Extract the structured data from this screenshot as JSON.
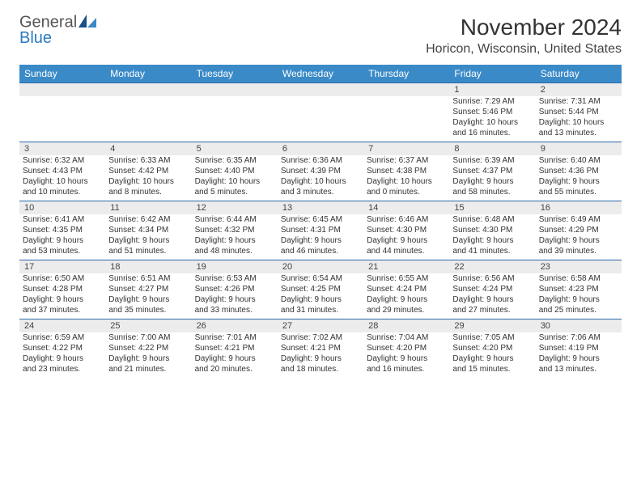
{
  "brand": {
    "general": "General",
    "blue": "Blue"
  },
  "title": "November 2024",
  "location": "Horicon, Wisconsin, United States",
  "colors": {
    "header_bg": "#3a8ac8",
    "header_text": "#ffffff",
    "daynum_bg": "#ececec",
    "border": "#2a6aa8",
    "brand_blue": "#2a7ac0",
    "text": "#333333"
  },
  "days": [
    "Sunday",
    "Monday",
    "Tuesday",
    "Wednesday",
    "Thursday",
    "Friday",
    "Saturday"
  ],
  "weeks": [
    {
      "nums": [
        "",
        "",
        "",
        "",
        "",
        "1",
        "2"
      ],
      "cells": [
        {},
        {},
        {},
        {},
        {},
        {
          "sunrise": "Sunrise: 7:29 AM",
          "sunset": "Sunset: 5:46 PM",
          "day1": "Daylight: 10 hours",
          "day2": "and 16 minutes."
        },
        {
          "sunrise": "Sunrise: 7:31 AM",
          "sunset": "Sunset: 5:44 PM",
          "day1": "Daylight: 10 hours",
          "day2": "and 13 minutes."
        }
      ]
    },
    {
      "nums": [
        "3",
        "4",
        "5",
        "6",
        "7",
        "8",
        "9"
      ],
      "cells": [
        {
          "sunrise": "Sunrise: 6:32 AM",
          "sunset": "Sunset: 4:43 PM",
          "day1": "Daylight: 10 hours",
          "day2": "and 10 minutes."
        },
        {
          "sunrise": "Sunrise: 6:33 AM",
          "sunset": "Sunset: 4:42 PM",
          "day1": "Daylight: 10 hours",
          "day2": "and 8 minutes."
        },
        {
          "sunrise": "Sunrise: 6:35 AM",
          "sunset": "Sunset: 4:40 PM",
          "day1": "Daylight: 10 hours",
          "day2": "and 5 minutes."
        },
        {
          "sunrise": "Sunrise: 6:36 AM",
          "sunset": "Sunset: 4:39 PM",
          "day1": "Daylight: 10 hours",
          "day2": "and 3 minutes."
        },
        {
          "sunrise": "Sunrise: 6:37 AM",
          "sunset": "Sunset: 4:38 PM",
          "day1": "Daylight: 10 hours",
          "day2": "and 0 minutes."
        },
        {
          "sunrise": "Sunrise: 6:39 AM",
          "sunset": "Sunset: 4:37 PM",
          "day1": "Daylight: 9 hours",
          "day2": "and 58 minutes."
        },
        {
          "sunrise": "Sunrise: 6:40 AM",
          "sunset": "Sunset: 4:36 PM",
          "day1": "Daylight: 9 hours",
          "day2": "and 55 minutes."
        }
      ]
    },
    {
      "nums": [
        "10",
        "11",
        "12",
        "13",
        "14",
        "15",
        "16"
      ],
      "cells": [
        {
          "sunrise": "Sunrise: 6:41 AM",
          "sunset": "Sunset: 4:35 PM",
          "day1": "Daylight: 9 hours",
          "day2": "and 53 minutes."
        },
        {
          "sunrise": "Sunrise: 6:42 AM",
          "sunset": "Sunset: 4:34 PM",
          "day1": "Daylight: 9 hours",
          "day2": "and 51 minutes."
        },
        {
          "sunrise": "Sunrise: 6:44 AM",
          "sunset": "Sunset: 4:32 PM",
          "day1": "Daylight: 9 hours",
          "day2": "and 48 minutes."
        },
        {
          "sunrise": "Sunrise: 6:45 AM",
          "sunset": "Sunset: 4:31 PM",
          "day1": "Daylight: 9 hours",
          "day2": "and 46 minutes."
        },
        {
          "sunrise": "Sunrise: 6:46 AM",
          "sunset": "Sunset: 4:30 PM",
          "day1": "Daylight: 9 hours",
          "day2": "and 44 minutes."
        },
        {
          "sunrise": "Sunrise: 6:48 AM",
          "sunset": "Sunset: 4:30 PM",
          "day1": "Daylight: 9 hours",
          "day2": "and 41 minutes."
        },
        {
          "sunrise": "Sunrise: 6:49 AM",
          "sunset": "Sunset: 4:29 PM",
          "day1": "Daylight: 9 hours",
          "day2": "and 39 minutes."
        }
      ]
    },
    {
      "nums": [
        "17",
        "18",
        "19",
        "20",
        "21",
        "22",
        "23"
      ],
      "cells": [
        {
          "sunrise": "Sunrise: 6:50 AM",
          "sunset": "Sunset: 4:28 PM",
          "day1": "Daylight: 9 hours",
          "day2": "and 37 minutes."
        },
        {
          "sunrise": "Sunrise: 6:51 AM",
          "sunset": "Sunset: 4:27 PM",
          "day1": "Daylight: 9 hours",
          "day2": "and 35 minutes."
        },
        {
          "sunrise": "Sunrise: 6:53 AM",
          "sunset": "Sunset: 4:26 PM",
          "day1": "Daylight: 9 hours",
          "day2": "and 33 minutes."
        },
        {
          "sunrise": "Sunrise: 6:54 AM",
          "sunset": "Sunset: 4:25 PM",
          "day1": "Daylight: 9 hours",
          "day2": "and 31 minutes."
        },
        {
          "sunrise": "Sunrise: 6:55 AM",
          "sunset": "Sunset: 4:24 PM",
          "day1": "Daylight: 9 hours",
          "day2": "and 29 minutes."
        },
        {
          "sunrise": "Sunrise: 6:56 AM",
          "sunset": "Sunset: 4:24 PM",
          "day1": "Daylight: 9 hours",
          "day2": "and 27 minutes."
        },
        {
          "sunrise": "Sunrise: 6:58 AM",
          "sunset": "Sunset: 4:23 PM",
          "day1": "Daylight: 9 hours",
          "day2": "and 25 minutes."
        }
      ]
    },
    {
      "nums": [
        "24",
        "25",
        "26",
        "27",
        "28",
        "29",
        "30"
      ],
      "cells": [
        {
          "sunrise": "Sunrise: 6:59 AM",
          "sunset": "Sunset: 4:22 PM",
          "day1": "Daylight: 9 hours",
          "day2": "and 23 minutes."
        },
        {
          "sunrise": "Sunrise: 7:00 AM",
          "sunset": "Sunset: 4:22 PM",
          "day1": "Daylight: 9 hours",
          "day2": "and 21 minutes."
        },
        {
          "sunrise": "Sunrise: 7:01 AM",
          "sunset": "Sunset: 4:21 PM",
          "day1": "Daylight: 9 hours",
          "day2": "and 20 minutes."
        },
        {
          "sunrise": "Sunrise: 7:02 AM",
          "sunset": "Sunset: 4:21 PM",
          "day1": "Daylight: 9 hours",
          "day2": "and 18 minutes."
        },
        {
          "sunrise": "Sunrise: 7:04 AM",
          "sunset": "Sunset: 4:20 PM",
          "day1": "Daylight: 9 hours",
          "day2": "and 16 minutes."
        },
        {
          "sunrise": "Sunrise: 7:05 AM",
          "sunset": "Sunset: 4:20 PM",
          "day1": "Daylight: 9 hours",
          "day2": "and 15 minutes."
        },
        {
          "sunrise": "Sunrise: 7:06 AM",
          "sunset": "Sunset: 4:19 PM",
          "day1": "Daylight: 9 hours",
          "day2": "and 13 minutes."
        }
      ]
    }
  ]
}
